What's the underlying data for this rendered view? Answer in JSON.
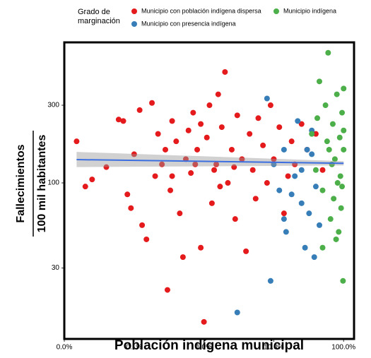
{
  "chart_data": {
    "type": "scatter",
    "legend_title": [
      "Grado de",
      "marginación"
    ],
    "xlabel": "Población indígena municipal",
    "ylabel": [
      "Fallecimientos",
      "100 mil habitantes"
    ],
    "xscale": "log",
    "yscale": "log",
    "xlim": [
      0.01,
      141
    ],
    "ylim": [
      11,
      730
    ],
    "xticks": [
      {
        "value": 0.01,
        "label": "0.0%"
      },
      {
        "value": 0.1,
        "label": "0.1%"
      },
      {
        "value": 1,
        "label": "1.0%"
      },
      {
        "value": 10,
        "label": "10.0%"
      },
      {
        "value": 100,
        "label": "100.0%"
      }
    ],
    "yticks": [
      30,
      100,
      300
    ],
    "series": [
      {
        "name": "Municipio con población indígena dispersa",
        "color": "#e41a1c",
        "x": [
          0.015,
          0.02,
          0.025,
          0.04,
          0.06,
          0.07,
          0.08,
          0.09,
          0.1,
          0.12,
          0.13,
          0.15,
          0.18,
          0.2,
          0.22,
          0.25,
          0.28,
          0.3,
          0.33,
          0.35,
          0.4,
          0.45,
          0.5,
          0.55,
          0.6,
          0.65,
          0.7,
          0.8,
          0.9,
          1.0,
          1.1,
          1.2,
          1.3,
          1.5,
          1.6,
          1.8,
          2.0,
          2.2,
          2.5,
          2.8,
          3.0,
          3.5,
          4.0,
          4.5,
          5,
          5.5,
          6,
          7,
          8,
          9,
          10,
          12,
          14,
          16,
          18,
          20,
          25,
          30,
          40,
          50,
          0.35,
          0.75,
          1.4,
          2.7,
          0.9,
          1.7
        ],
        "values": [
          180,
          95,
          105,
          125,
          245,
          240,
          85,
          70,
          150,
          280,
          55,
          45,
          310,
          110,
          200,
          130,
          160,
          22,
          90,
          240,
          180,
          65,
          35,
          140,
          210,
          115,
          270,
          160,
          40,
          14,
          190,
          300,
          75,
          130,
          350,
          220,
          480,
          100,
          160,
          60,
          260,
          140,
          38,
          200,
          120,
          80,
          250,
          170,
          100,
          300,
          140,
          220,
          65,
          110,
          180,
          130,
          230,
          160,
          200,
          120,
          110,
          130,
          120,
          125,
          230,
          95
        ]
      },
      {
        "name": "Municipio con presencia indígena",
        "color": "#377eb8",
        "x": [
          8,
          10,
          12,
          14,
          15,
          18,
          20,
          22,
          25,
          28,
          30,
          32,
          35,
          38,
          40,
          3,
          9,
          45,
          14,
          25,
          35
        ],
        "values": [
          330,
          130,
          90,
          60,
          50,
          85,
          110,
          240,
          75,
          40,
          160,
          65,
          150,
          35,
          95,
          16,
          25,
          55,
          160,
          120,
          210
        ]
      },
      {
        "name": "Municipio indígena",
        "color": "#4daf4a",
        "x": [
          35,
          40,
          45,
          50,
          55,
          60,
          62,
          65,
          70,
          72,
          75,
          80,
          85,
          88,
          90,
          92,
          95,
          98,
          100,
          100,
          50,
          42,
          68,
          78,
          95,
          100,
          58,
          82
        ],
        "values": [
          200,
          120,
          420,
          90,
          300,
          630,
          160,
          60,
          230,
          80,
          140,
          350,
          50,
          190,
          110,
          70,
          270,
          25,
          160,
          380,
          40,
          250,
          130,
          45,
          95,
          210,
          180,
          100
        ]
      }
    ],
    "trend": {
      "color": "#3b6fe0",
      "x": [
        0.015,
        100
      ],
      "values": [
        139,
        132
      ],
      "lower": [
        125,
        128
      ],
      "upper": [
        155,
        136
      ]
    }
  }
}
